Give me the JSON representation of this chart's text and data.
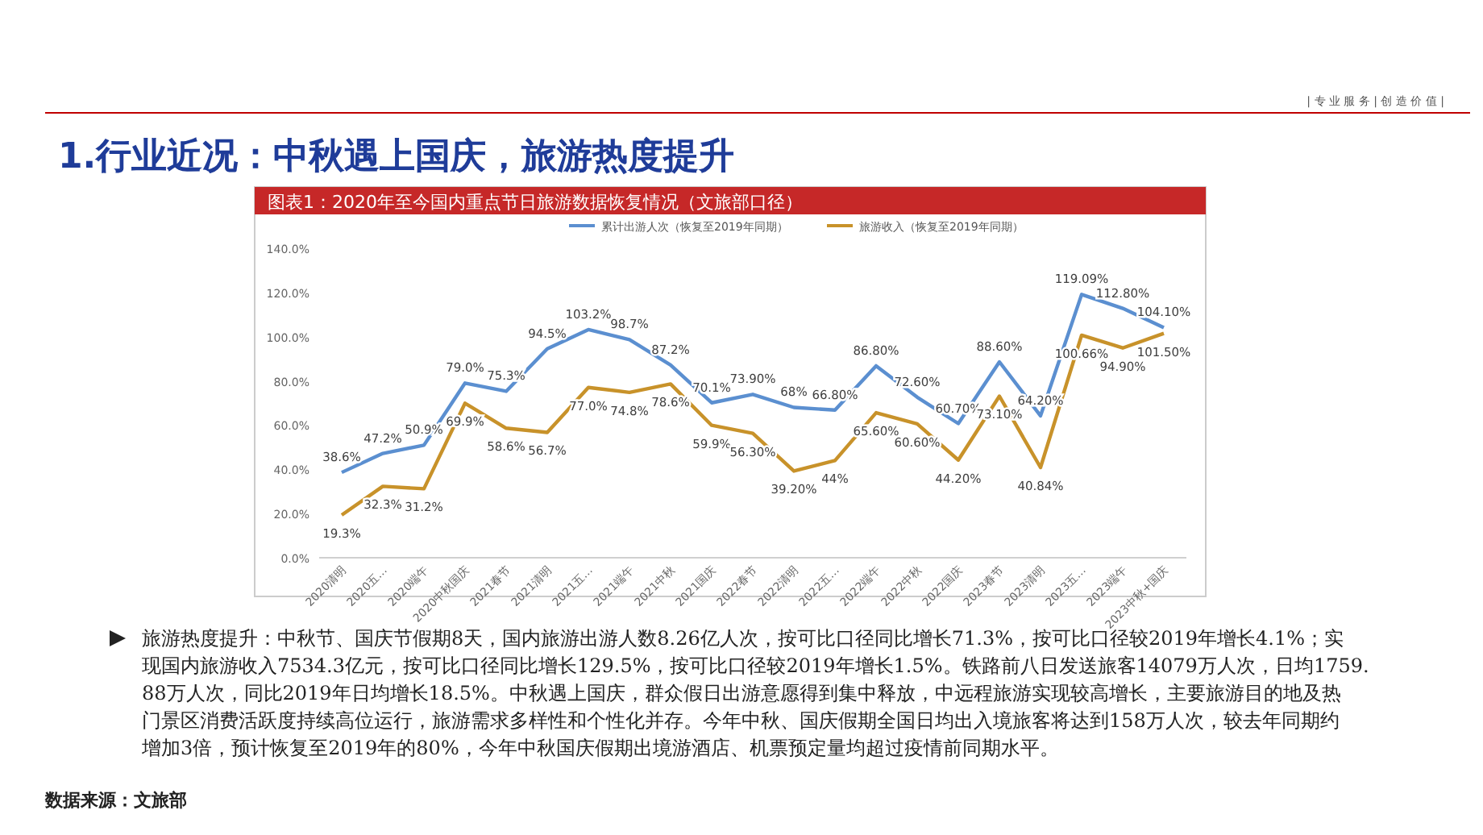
{
  "chart_data": {
    "type": "line",
    "title": "1.行业近况：中秋遇上国庆，旅游热度提升",
    "subtitle": "图表1：2020年至今国内重点节日旅游数据恢复情况（文旅部口径）",
    "categories": [
      "2020清明",
      "2020五…",
      "2020端午",
      "2020中秋国庆",
      "2021春节",
      "2021清明",
      "2021五…",
      "2021端午",
      "2021中秋",
      "2021国庆",
      "2022春节",
      "2022清明",
      "2022五…",
      "2022端午",
      "2022中秋",
      "2022国庆",
      "2023春节",
      "2023清明",
      "2023五…",
      "2023端午",
      "2023中秋+国庆"
    ],
    "series": [
      {
        "name": "累计出游人次（恢复至2019年同期）",
        "color": "#5b8fd0",
        "values": [
          38.6,
          47.2,
          50.9,
          79.0,
          75.3,
          94.5,
          103.2,
          98.7,
          87.2,
          70.1,
          73.9,
          68,
          66.8,
          86.8,
          72.6,
          60.7,
          88.6,
          64.2,
          119.09,
          112.8,
          104.1
        ],
        "value_labels": [
          "38.6%",
          "47.2%",
          "50.9%",
          "79.0%",
          "75.3%",
          "94.5%",
          "103.2%",
          "98.7%",
          "87.2%",
          "70.1%",
          "73.90%",
          "68%",
          "66.80%",
          "86.80%",
          "72.60%",
          "60.70%",
          "88.60%",
          "64.20%",
          "119.09%",
          "112.80%",
          "104.10%"
        ]
      },
      {
        "name": "旅游收入（恢复至2019年同期）",
        "color": "#c8922a",
        "values": [
          19.3,
          32.3,
          31.2,
          69.9,
          58.6,
          56.7,
          77.0,
          74.8,
          78.6,
          59.9,
          56.3,
          39.2,
          44,
          65.6,
          60.6,
          44.2,
          73.1,
          40.84,
          100.66,
          94.9,
          101.5
        ],
        "value_labels": [
          "19.3%",
          "32.3%",
          "31.2%",
          "69.9%",
          "58.6%",
          "56.7%",
          "77.0%",
          "74.8%",
          "78.6%",
          "59.9%",
          "56.30%",
          "39.20%",
          "44%",
          "65.60%",
          "60.60%",
          "44.20%",
          "73.10%",
          "40.84%",
          "100.66%",
          "94.90%",
          "101.50%"
        ]
      }
    ],
    "ylim": [
      0,
      140
    ],
    "yticks": [
      {
        "value": 0,
        "label": "0.0%"
      },
      {
        "value": 20,
        "label": "20.0%"
      },
      {
        "value": 40,
        "label": "40.0%"
      },
      {
        "value": 60,
        "label": "60.0%"
      },
      {
        "value": 80,
        "label": "80.0%"
      },
      {
        "value": 100,
        "label": "100.0%"
      },
      {
        "value": 120,
        "label": "120.0%"
      },
      {
        "value": 140,
        "label": "140.0%"
      }
    ],
    "grid": false,
    "legend": "top",
    "marker": "none",
    "line_style": "solid",
    "annotations": [
      "| 专 业 服 务 | 创 造 价 值 |",
      "旅游热度提升：中秋节、国庆节假期8天，国内旅游出游人数8.26亿人次，按可比口径同比增长71.3%，按可比口径较2019年增长4.1%；实现国内旅游收入7534.3亿元，按可比口径同比增长129.5%，按可比口径较2019年增长1.5%。铁路前八日发送旅客14079万人次，日均1759.88万人次，同比2019年日均增长18.5%。中秋遇上国庆，群众假日出游意愿得到集中释放，中远程旅游实现较高增长，主要旅游目的地及热门景区消费活跃度持续高位运行，旅游需求多样性和个性化并存。今年中秋、国庆假期全国日均出入境旅客将达到158万人次，较去年同期约增加3倍，预计恢复至2019年的80%，今年中秋国庆假期出境游酒店、机票预定量均超过疫情前同期水平。",
      "数据来源：文旅部"
    ]
  }
}
